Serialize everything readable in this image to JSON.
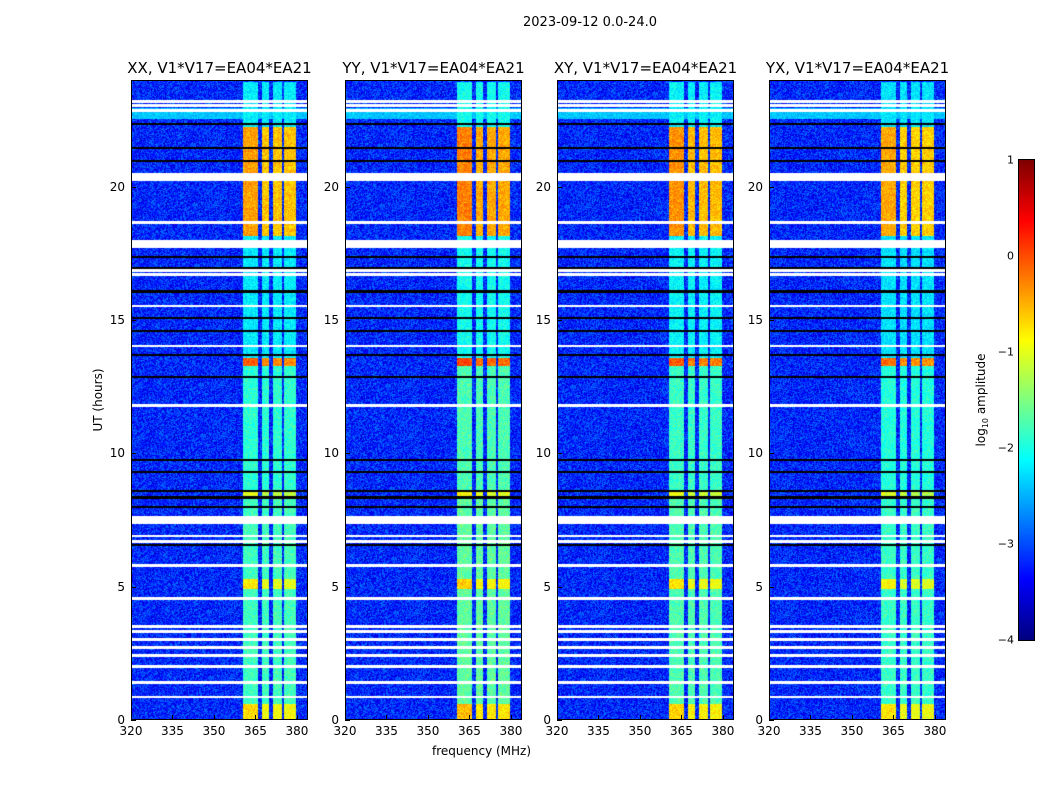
{
  "suptitle": "2023-09-12 0.0-24.0",
  "chart_data": {
    "type": "heatmap",
    "title": "2023-09-12 0.0-24.0",
    "xlabel": "frequency (MHz)",
    "ylabel": "UT (hours)",
    "xlim": [
      320,
      384
    ],
    "ylim": [
      0,
      24
    ],
    "xticks": [
      320,
      335,
      350,
      365,
      380
    ],
    "yticks": [
      0,
      5,
      10,
      15,
      20
    ],
    "panels": [
      {
        "title": "XX, V1*V17=EA04*EA21",
        "offset": 0
      },
      {
        "title": "YY, V1*V17=EA04*EA21",
        "offset": 0.15
      },
      {
        "title": "XY, V1*V17=EA04*EA21",
        "offset": 0.05
      },
      {
        "title": "YX, V1*V17=EA04*EA21",
        "offset": -0.05
      }
    ],
    "colorbar": {
      "label": "log10 amplitude",
      "label_main": "log",
      "label_sub": "10",
      "label_rest": " amplitude",
      "range": [
        -4,
        1
      ],
      "ticks": [
        1,
        0,
        -1,
        -2,
        -3,
        -4
      ],
      "tick_labels": [
        "1",
        "0",
        "−1",
        "−2",
        "−3",
        "−4"
      ],
      "colormap": "jet"
    },
    "background_level": -3.2,
    "rfi_channels_mhz": [
      [
        360.4,
        365.8
      ],
      [
        367.2,
        370.0
      ],
      [
        371.4,
        374.7
      ],
      [
        375.4,
        379.7
      ]
    ],
    "rfi_time_segments": [
      {
        "t": [
          0,
          0.6
        ],
        "level": -0.9
      },
      {
        "t": [
          0.6,
          4.9
        ],
        "level": -1.8
      },
      {
        "t": [
          4.9,
          5.3
        ],
        "level": -1.0
      },
      {
        "t": [
          5.3,
          8.3
        ],
        "level": -1.8
      },
      {
        "t": [
          8.3,
          8.6
        ],
        "level": -1.2
      },
      {
        "t": [
          8.6,
          13.3
        ],
        "level": -1.9
      },
      {
        "t": [
          13.3,
          13.6
        ],
        "level": -0.3
      },
      {
        "t": [
          13.6,
          18.2
        ],
        "level": -2.2
      },
      {
        "t": [
          18.2,
          22.3
        ],
        "level": -0.6
      },
      {
        "t": [
          22.3,
          24
        ],
        "level": -2.2
      }
    ],
    "broadband_segments": [
      {
        "t": [
          22.6,
          23.0
        ],
        "level": -2.4
      }
    ],
    "flagged_hours": [
      23.25,
      23.1,
      22.9,
      20.4,
      18.7,
      17.9,
      16.9,
      16.75,
      15.55,
      14.05,
      11.8,
      7.6,
      7.4,
      6.9,
      6.7,
      5.8,
      4.55,
      3.5,
      3.3,
      3.0,
      2.7,
      2.4,
      2.0,
      1.4,
      0.85
    ],
    "thick_flagged_hours": [
      20.4,
      17.9,
      7.5
    ],
    "zero_hours": [
      22.4,
      21.5,
      21.0,
      17.4,
      17.0,
      16.1,
      15.1,
      14.6,
      13.7,
      12.9,
      9.75,
      9.3,
      8.6,
      8.35,
      8.0,
      6.55
    ]
  }
}
